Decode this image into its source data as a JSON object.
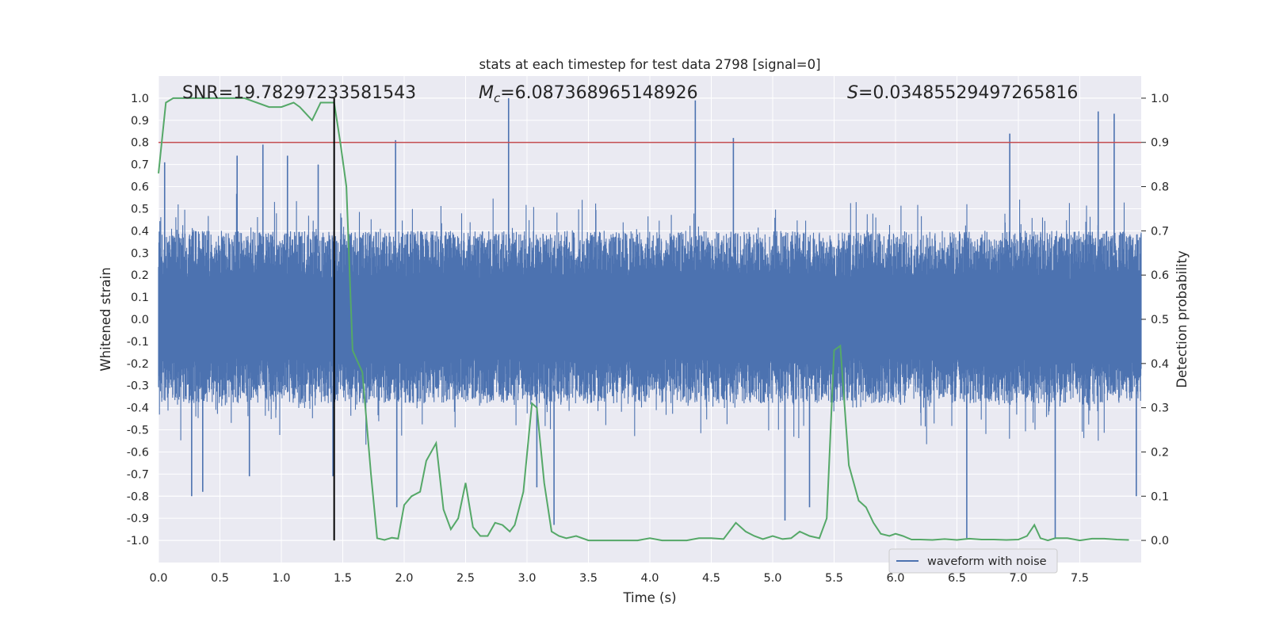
{
  "chart_data": {
    "type": "line",
    "title": "stats at each timestep for test data 2798 [signal=0]",
    "xlabel": "Time (s)",
    "ylabel_left": "Whitened strain",
    "ylabel_right": "Detection probability",
    "xlim": [
      0,
      8
    ],
    "ylim_left": [
      -1.1,
      1.1
    ],
    "ylim_right": [
      -0.05,
      1.05
    ],
    "x_ticks": [
      "0.0",
      "0.5",
      "1.0",
      "1.5",
      "2.0",
      "2.5",
      "3.0",
      "3.5",
      "4.0",
      "4.5",
      "5.0",
      "5.5",
      "6.0",
      "6.5",
      "7.0",
      "7.5"
    ],
    "y_left_ticks": [
      "1.0",
      "0.9",
      "0.8",
      "0.7",
      "0.6",
      "0.5",
      "0.4",
      "0.3",
      "0.2",
      "0.1",
      "0.0",
      "-0.1",
      "-0.2",
      "-0.3",
      "-0.4",
      "-0.5",
      "-0.6",
      "-0.7",
      "-0.8",
      "-0.9",
      "-1.0"
    ],
    "y_right_ticks": [
      "1.0",
      "0.9",
      "0.8",
      "0.7",
      "0.6",
      "0.5",
      "0.4",
      "0.3",
      "0.2",
      "0.1",
      "0.0"
    ],
    "grid": true,
    "legend_position": "bottom-right",
    "annotations": {
      "snr": "SNR=19.78297233581543",
      "mc_symbol": "M",
      "mc_sub": "c",
      "mc_value": "=6.087368965148926",
      "s_symbol": "S",
      "s_value": "=0.03485529497265816"
    },
    "threshold": {
      "axis": "right",
      "value": 0.9,
      "color": "#c44e52"
    },
    "marker": {
      "x": 1.43,
      "color": "#000000"
    },
    "series": [
      {
        "name": "waveform with noise",
        "axis": "left",
        "color": "#4c72b0",
        "style": "dense-noise",
        "typical_envelope": [
          -0.38,
          0.4
        ],
        "peaks": [
          {
            "x": 0.05,
            "y": 0.71
          },
          {
            "x": 0.27,
            "y": -0.8
          },
          {
            "x": 0.36,
            "y": -0.78
          },
          {
            "x": 0.64,
            "y": 0.74
          },
          {
            "x": 0.74,
            "y": -0.71
          },
          {
            "x": 0.85,
            "y": 0.79
          },
          {
            "x": 1.05,
            "y": 0.74
          },
          {
            "x": 1.3,
            "y": 0.7
          },
          {
            "x": 1.42,
            "y": -0.71
          },
          {
            "x": 1.93,
            "y": 0.81
          },
          {
            "x": 1.94,
            "y": -0.85
          },
          {
            "x": 2.85,
            "y": 1.0
          },
          {
            "x": 3.08,
            "y": -0.76
          },
          {
            "x": 3.22,
            "y": -0.93
          },
          {
            "x": 4.37,
            "y": 0.99
          },
          {
            "x": 4.68,
            "y": 0.82
          },
          {
            "x": 5.1,
            "y": -0.91
          },
          {
            "x": 5.3,
            "y": -0.85
          },
          {
            "x": 6.58,
            "y": -0.99
          },
          {
            "x": 6.93,
            "y": 0.84
          },
          {
            "x": 7.3,
            "y": -0.99
          },
          {
            "x": 7.65,
            "y": 0.94
          },
          {
            "x": 7.78,
            "y": 0.93
          },
          {
            "x": 7.96,
            "y": -0.8
          }
        ]
      },
      {
        "name": "",
        "axis": "right",
        "color": "#55a868",
        "x": [
          0.0,
          0.06,
          0.12,
          0.2,
          0.3,
          0.4,
          0.5,
          0.6,
          0.7,
          0.8,
          0.9,
          1.0,
          1.1,
          1.15,
          1.25,
          1.32,
          1.38,
          1.43,
          1.48,
          1.53,
          1.58,
          1.66,
          1.73,
          1.78,
          1.84,
          1.9,
          1.95,
          2.0,
          2.06,
          2.13,
          2.18,
          2.26,
          2.32,
          2.38,
          2.44,
          2.5,
          2.56,
          2.62,
          2.68,
          2.74,
          2.8,
          2.86,
          2.9,
          2.97,
          3.04,
          3.08,
          3.14,
          3.2,
          3.26,
          3.32,
          3.4,
          3.5,
          3.6,
          3.7,
          3.8,
          3.9,
          4.0,
          4.1,
          4.2,
          4.3,
          4.4,
          4.5,
          4.6,
          4.7,
          4.78,
          4.85,
          4.92,
          5.0,
          5.08,
          5.15,
          5.22,
          5.3,
          5.38,
          5.44,
          5.5,
          5.55,
          5.62,
          5.7,
          5.76,
          5.82,
          5.88,
          5.95,
          6.0,
          6.06,
          6.13,
          6.2,
          6.3,
          6.4,
          6.5,
          6.6,
          6.7,
          6.8,
          6.9,
          7.0,
          7.07,
          7.13,
          7.18,
          7.24,
          7.3,
          7.4,
          7.5,
          7.6,
          7.7,
          7.8,
          7.9
        ],
        "y": [
          0.83,
          0.99,
          1.0,
          1.0,
          1.0,
          1.0,
          1.0,
          1.0,
          1.0,
          0.99,
          0.98,
          0.98,
          0.99,
          0.98,
          0.95,
          0.99,
          0.99,
          0.99,
          0.9,
          0.8,
          0.43,
          0.38,
          0.15,
          0.005,
          0.001,
          0.006,
          0.004,
          0.08,
          0.1,
          0.11,
          0.18,
          0.22,
          0.07,
          0.025,
          0.05,
          0.13,
          0.03,
          0.01,
          0.01,
          0.04,
          0.035,
          0.02,
          0.035,
          0.11,
          0.31,
          0.3,
          0.13,
          0.02,
          0.01,
          0.005,
          0.01,
          0.0,
          0.0,
          0.0,
          0.0,
          0.0,
          0.005,
          0.0,
          0.0,
          0.0,
          0.005,
          0.005,
          0.003,
          0.04,
          0.02,
          0.01,
          0.003,
          0.01,
          0.003,
          0.005,
          0.02,
          0.01,
          0.005,
          0.05,
          0.43,
          0.44,
          0.17,
          0.09,
          0.075,
          0.04,
          0.015,
          0.01,
          0.015,
          0.01,
          0.002,
          0.002,
          0.001,
          0.003,
          0.001,
          0.004,
          0.002,
          0.002,
          0.001,
          0.002,
          0.01,
          0.035,
          0.005,
          0.0,
          0.005,
          0.005,
          0.0,
          0.004,
          0.004,
          0.002,
          0.001
        ]
      }
    ]
  }
}
